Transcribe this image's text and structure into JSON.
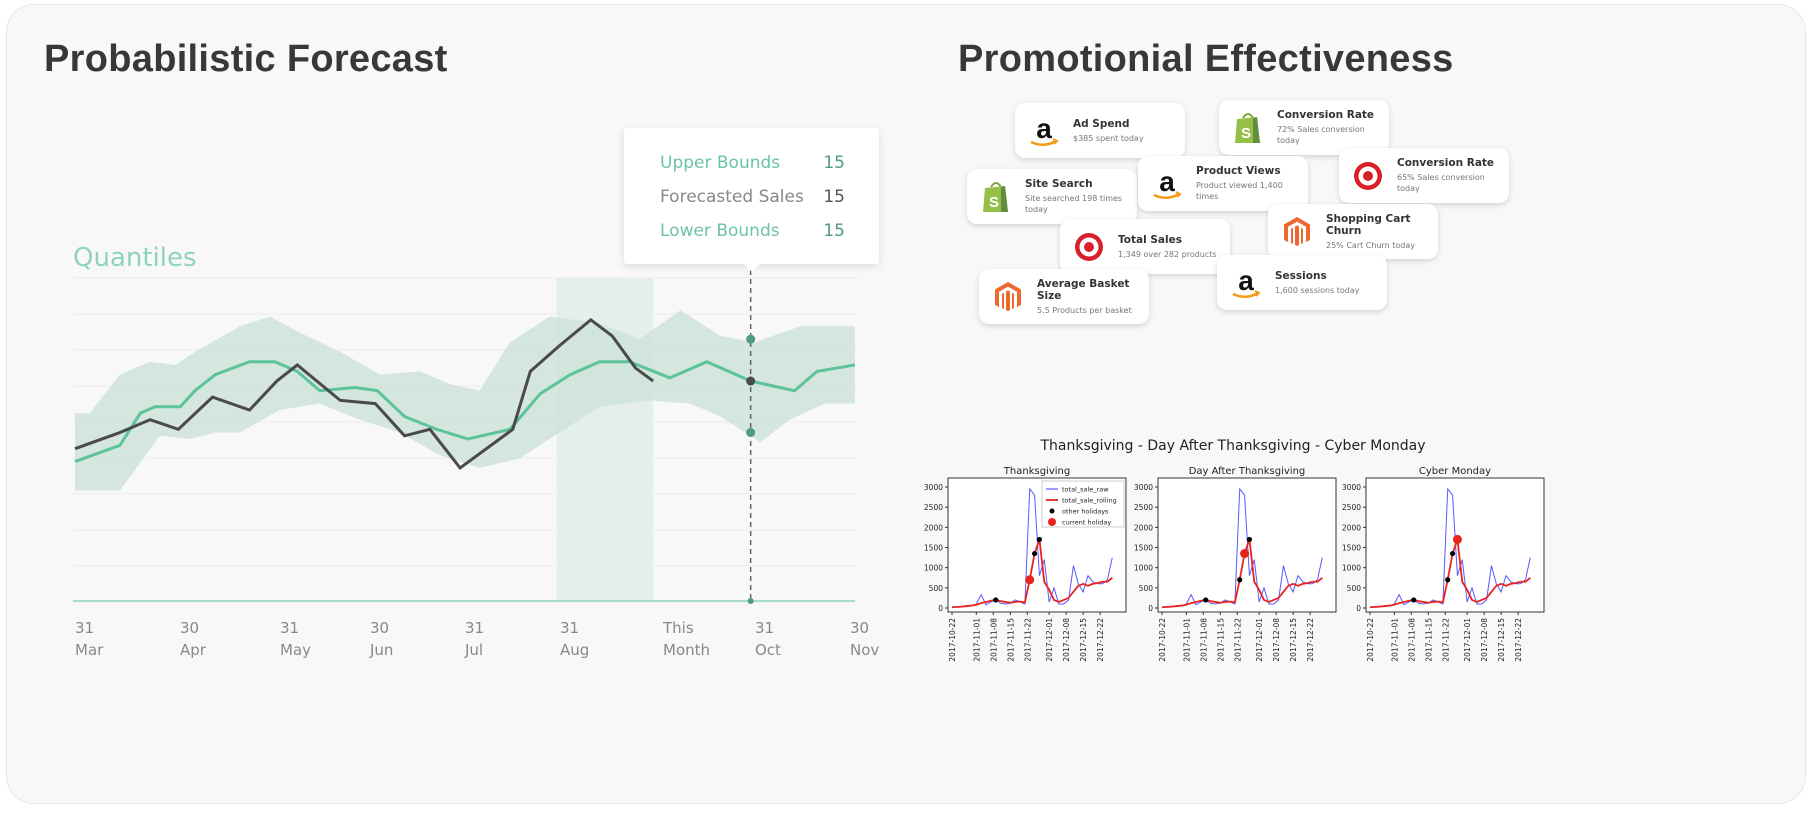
{
  "left": {
    "title": "Probabilistic Forecast",
    "chart_label": "Quantiles",
    "tooltip": [
      {
        "label": "Upper Bounds",
        "value": "15",
        "color": "#6cc4a1"
      },
      {
        "label": "Forecasted Sales",
        "value": "15",
        "color": "#888888"
      },
      {
        "label": "Lower Bounds",
        "value": "15",
        "color": "#6cc4a1"
      }
    ]
  },
  "right": {
    "title": "Promotionial Effectiveness",
    "cards": [
      {
        "title": "Ad Spend",
        "sub": "$385 spent today",
        "icon": "amazon-icon"
      },
      {
        "title": "Conversion Rate",
        "sub": "72% Sales conversion today",
        "icon": "shopify-icon"
      },
      {
        "title": "Site Search",
        "sub": "Site searched 198 times today",
        "icon": "shopify-icon"
      },
      {
        "title": "Product Views",
        "sub": "Product viewed 1,400 times",
        "icon": "amazon-icon"
      },
      {
        "title": "Conversion Rate",
        "sub": "65% Sales conversion today",
        "icon": "target-icon"
      },
      {
        "title": "Shopping Cart Churn",
        "sub": "25% Cart Churn today",
        "icon": "magento-icon"
      },
      {
        "title": "Total Sales",
        "sub": "1,349 over 282 products",
        "icon": "target-icon"
      },
      {
        "title": "Sessions",
        "sub": "1,600 sessions today",
        "icon": "amazon-icon"
      },
      {
        "title": "Average Basket Size",
        "sub": "5.5 Products per basket",
        "icon": "magento-icon"
      }
    ]
  },
  "chart_data": [
    {
      "type": "line",
      "title": "Quantiles",
      "categories": [
        "31\nMar",
        "30\nApr",
        "31\nMay",
        "30\nJun",
        "31\nJul",
        "31\nAug",
        "This\nMonth",
        "31\nOct",
        "30\nNov"
      ],
      "xlim": [
        0,
        8
      ],
      "ylim": [
        0,
        100
      ],
      "grid": true,
      "colors": {
        "forecast": "#5cc39a",
        "actual": "#4a4a4a",
        "band": "#cfe3da",
        "highlight": "#e4efe9",
        "hover": "#4f9a80"
      },
      "highlight_range": [
        4.94,
        5.93
      ],
      "hover_x": 6.93,
      "hover_points": [
        81,
        68,
        52
      ],
      "upper": [
        [
          0,
          58
        ],
        [
          0.15,
          58
        ],
        [
          0.46,
          70
        ],
        [
          0.77,
          74
        ],
        [
          1.03,
          73
        ],
        [
          1.23,
          77
        ],
        [
          1.69,
          85
        ],
        [
          2,
          88
        ],
        [
          2.31,
          83
        ],
        [
          2.72,
          77
        ],
        [
          3.13,
          70
        ],
        [
          3.54,
          71
        ],
        [
          3.85,
          67
        ],
        [
          4.15,
          65
        ],
        [
          4.46,
          80
        ],
        [
          4.87,
          88
        ],
        [
          5.38,
          86
        ],
        [
          5.79,
          81
        ],
        [
          6.21,
          90
        ],
        [
          6.62,
          82
        ],
        [
          6.97,
          80
        ],
        [
          7.44,
          85
        ],
        [
          8,
          85
        ]
      ],
      "lower": [
        [
          0,
          34
        ],
        [
          0.15,
          34
        ],
        [
          0.46,
          34
        ],
        [
          0.87,
          51
        ],
        [
          1.18,
          50
        ],
        [
          1.44,
          52
        ],
        [
          1.69,
          52
        ],
        [
          2.1,
          59
        ],
        [
          2.51,
          61
        ],
        [
          2.92,
          56
        ],
        [
          3.33,
          52
        ],
        [
          3.74,
          45
        ],
        [
          4.15,
          41
        ],
        [
          4.56,
          44
        ],
        [
          4.97,
          52
        ],
        [
          5.38,
          60
        ],
        [
          5.9,
          62
        ],
        [
          6.31,
          61
        ],
        [
          6.62,
          57
        ],
        [
          7.03,
          49
        ],
        [
          7.33,
          56
        ],
        [
          7.69,
          61
        ],
        [
          8,
          61
        ]
      ],
      "forecast": [
        [
          0,
          43
        ],
        [
          0.46,
          48
        ],
        [
          0.67,
          58
        ],
        [
          0.82,
          60
        ],
        [
          1.08,
          60
        ],
        [
          1.23,
          65
        ],
        [
          1.44,
          70
        ],
        [
          1.79,
          74
        ],
        [
          2.05,
          74
        ],
        [
          2.28,
          71
        ],
        [
          2.51,
          65
        ],
        [
          2.87,
          66
        ],
        [
          3.1,
          65
        ],
        [
          3.38,
          57
        ],
        [
          3.71,
          53
        ],
        [
          4.03,
          50
        ],
        [
          4.46,
          53
        ],
        [
          4.77,
          64
        ],
        [
          5.08,
          70
        ],
        [
          5.38,
          74
        ],
        [
          5.69,
          74
        ],
        [
          6.1,
          69
        ],
        [
          6.48,
          74
        ],
        [
          6.93,
          68
        ],
        [
          7.38,
          65
        ],
        [
          7.61,
          71
        ],
        [
          8,
          73
        ]
      ],
      "actual": [
        [
          0,
          47
        ],
        [
          0.46,
          52
        ],
        [
          0.77,
          56
        ],
        [
          1.06,
          53
        ],
        [
          1.41,
          63
        ],
        [
          1.79,
          59
        ],
        [
          2.07,
          68
        ],
        [
          2.28,
          73
        ],
        [
          2.72,
          62
        ],
        [
          3.08,
          61
        ],
        [
          3.38,
          51
        ],
        [
          3.64,
          53
        ],
        [
          3.95,
          41
        ],
        [
          4.49,
          53
        ],
        [
          4.67,
          71
        ],
        [
          4.97,
          79
        ],
        [
          5.29,
          87
        ],
        [
          5.51,
          82
        ],
        [
          5.75,
          72
        ],
        [
          5.93,
          68
        ]
      ]
    },
    {
      "type": "line",
      "title": "Thanksgiving - Day After Thanksgiving - Cyber Monday",
      "ylim": [
        0,
        3000
      ],
      "yticks": [
        0,
        500,
        1000,
        1500,
        2000,
        2500,
        3000
      ],
      "xticks": [
        "2017-10-22",
        "2017-11-01",
        "2017-11-08",
        "2017-11-15",
        "2017-11-22",
        "2017-12-01",
        "2017-12-08",
        "2017-12-15",
        "2017-12-22"
      ],
      "x": [
        "2017-10-22",
        "2017-10-24",
        "2017-10-26",
        "2017-10-28",
        "2017-10-30",
        "2017-11-01",
        "2017-11-03",
        "2017-11-05",
        "2017-11-07",
        "2017-11-09",
        "2017-11-11",
        "2017-11-13",
        "2017-11-15",
        "2017-11-17",
        "2017-11-19",
        "2017-11-21",
        "2017-11-23",
        "2017-11-25",
        "2017-11-27",
        "2017-11-29",
        "2017-12-01",
        "2017-12-03",
        "2017-12-05",
        "2017-12-07",
        "2017-12-09",
        "2017-12-11",
        "2017-12-13",
        "2017-12-15",
        "2017-12-17",
        "2017-12-19",
        "2017-12-21",
        "2017-12-23",
        "2017-12-25",
        "2017-12-27"
      ],
      "legend": [
        "total_sale_raw",
        "total_sale_rolling",
        "other holidays",
        "current holiday"
      ],
      "raw": [
        20,
        30,
        40,
        60,
        50,
        100,
        330,
        80,
        150,
        200,
        120,
        100,
        120,
        200,
        150,
        100,
        2950,
        2800,
        800,
        1200,
        150,
        500,
        100,
        100,
        200,
        1050,
        600,
        400,
        800,
        650,
        600,
        600,
        700,
        1250
      ],
      "rolling": [
        20,
        25,
        35,
        45,
        60,
        80,
        120,
        150,
        180,
        200,
        170,
        150,
        130,
        150,
        160,
        140,
        700,
        1350,
        1700,
        650,
        450,
        200,
        150,
        200,
        250,
        400,
        550,
        600,
        550,
        600,
        620,
        650,
        650,
        750
      ],
      "subplots": [
        {
          "title": "Thanksgiving",
          "current": 16,
          "others": [
            9,
            17,
            18
          ],
          "legend": true
        },
        {
          "title": "Day After Thanksgiving",
          "current": 17,
          "others": [
            9,
            16,
            18
          ],
          "legend": false
        },
        {
          "title": "Cyber Monday",
          "current": 18,
          "others": [
            9,
            16,
            17
          ],
          "legend": false
        }
      ]
    }
  ]
}
